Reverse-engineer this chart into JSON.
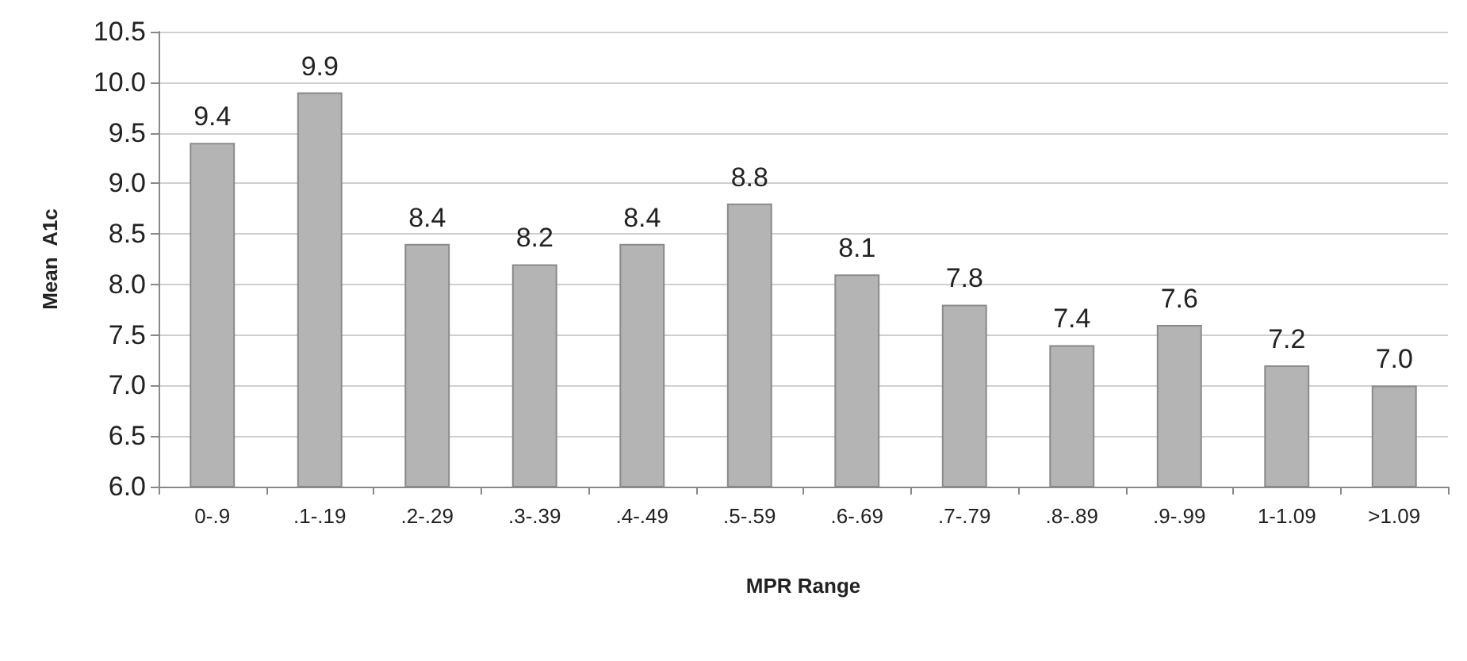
{
  "chart_data": {
    "type": "bar",
    "xlabel": "MPR Range",
    "ylabel": "Mean  A1c",
    "categories": [
      "0-.9",
      ".1-.19",
      ".2-.29",
      ".3-.39",
      ".4-.49",
      ".5-.59",
      ".6-.69",
      ".7-.79",
      ".8-.89",
      ".9-.99",
      "1-1.09",
      ">1.09"
    ],
    "values": [
      9.4,
      9.9,
      8.4,
      8.2,
      8.4,
      8.8,
      8.1,
      7.8,
      7.4,
      7.6,
      7.2,
      7.0
    ],
    "value_labels": [
      "9.4",
      "9.9",
      "8.4",
      "8.2",
      "8.4",
      "8.8",
      "8.1",
      "7.8",
      "7.4",
      "7.6",
      "7.2",
      "7.0"
    ],
    "color": "#b4b4b4",
    "ylim": [
      6,
      10.5
    ],
    "yticks": [
      {
        "value": 6,
        "label": "6.0"
      },
      {
        "value": 6.5,
        "label": "6.5"
      },
      {
        "value": 7,
        "label": "7.0"
      },
      {
        "value": 7.5,
        "label": "7.5"
      },
      {
        "value": 8,
        "label": "8.0"
      },
      {
        "value": 8.5,
        "label": "8.5"
      },
      {
        "value": 9,
        "label": "9.0"
      },
      {
        "value": 9.5,
        "label": "9.5"
      },
      {
        "value": 10,
        "label": "10.0"
      },
      {
        "value": 10.5,
        "label": "10.5"
      }
    ],
    "grid": "y"
  }
}
